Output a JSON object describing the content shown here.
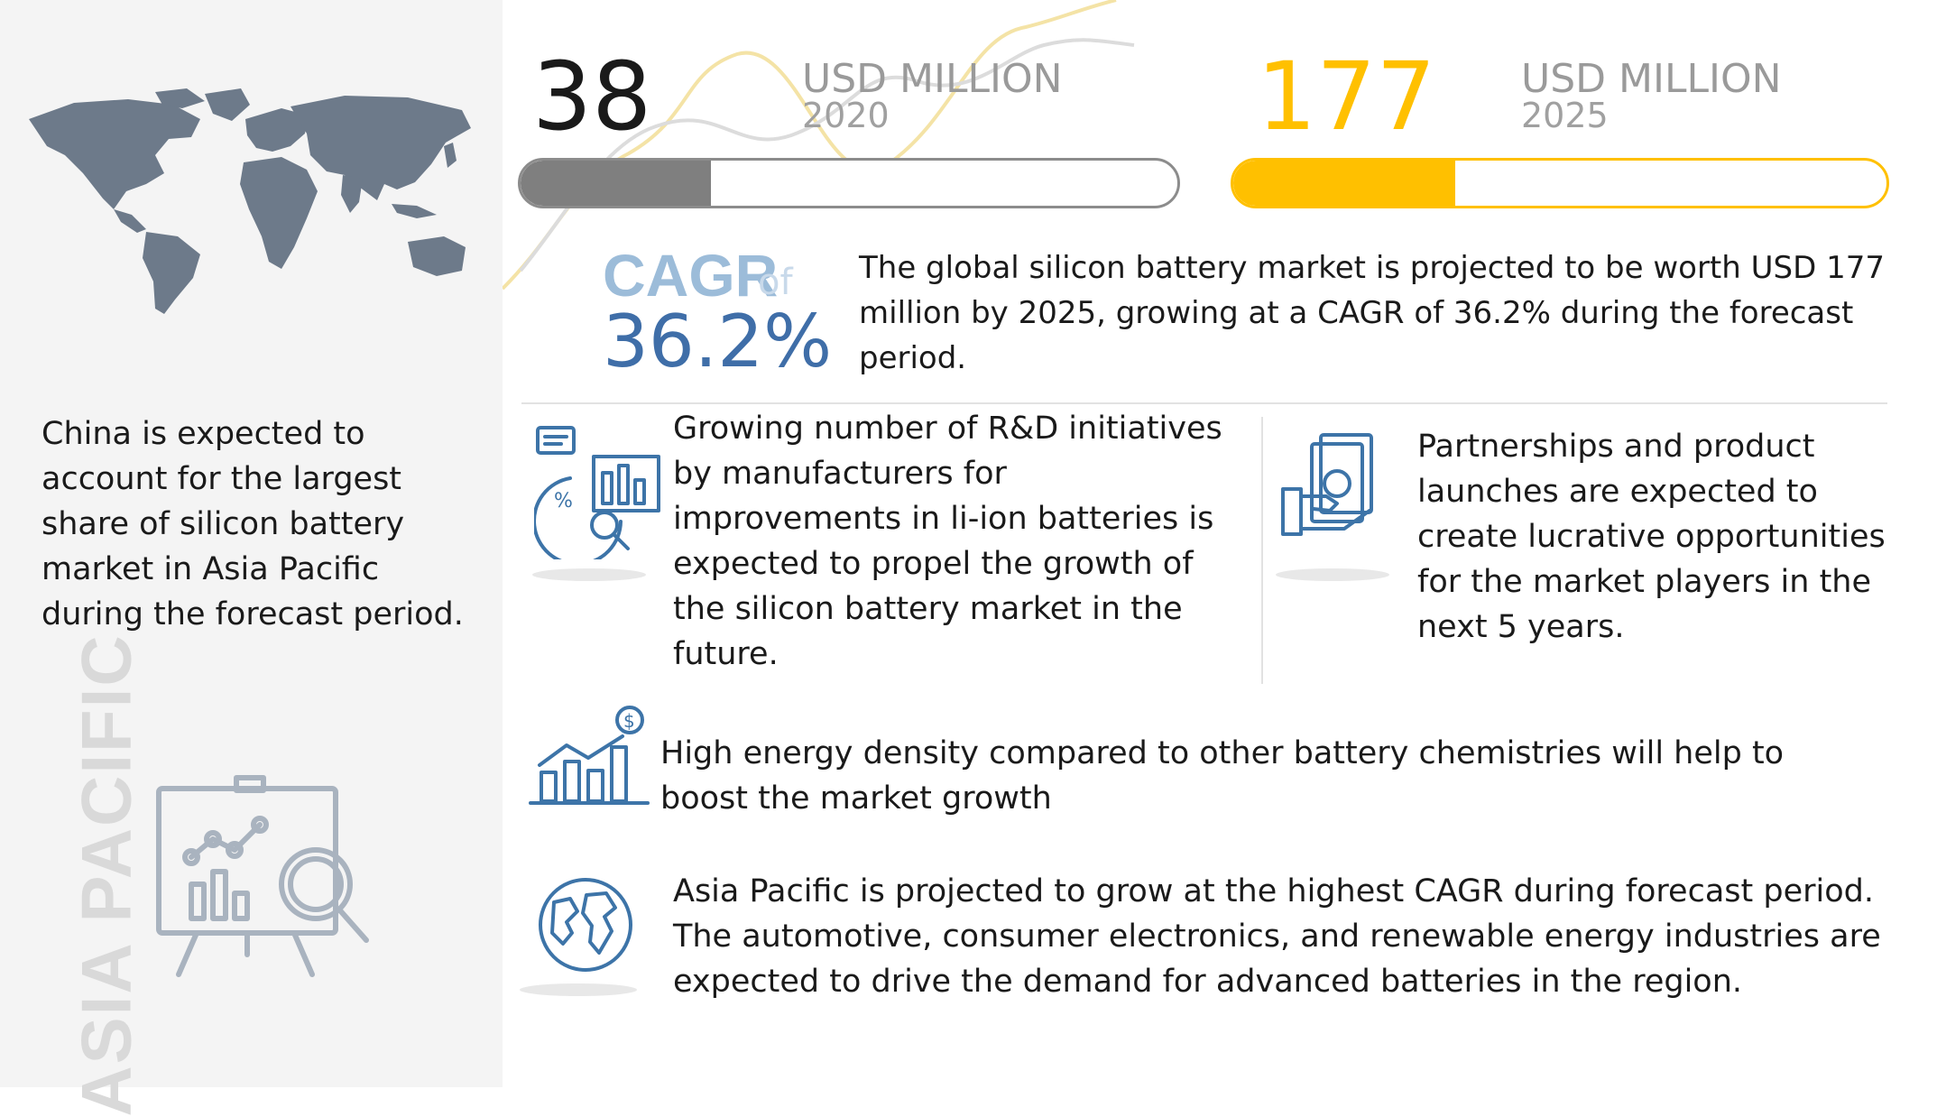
{
  "sidebar": {
    "china_text": "China is expected to account for the largest share of  silicon battery market in Asia Pacific during the forecast period.",
    "region_label": "ASIA PACIFIC"
  },
  "metrics": {
    "value_2020": {
      "number": "38",
      "unit": "USD MILLION",
      "year": "2020",
      "bar_fill_fraction": 0.29,
      "color": "#7f7f7f"
    },
    "value_2025": {
      "number": "177",
      "unit": "USD MILLION",
      "year": "2025",
      "bar_fill_fraction": 0.34,
      "color": "#ffc000"
    }
  },
  "cagr": {
    "label": "CAGR",
    "of": "of",
    "value": "36.2%",
    "summary": "The global silicon battery market is projected to be worth USD 177 million by 2025, growing at a CAGR of 36.2% during the forecast period."
  },
  "features": {
    "rnd": "Growing number of R&D initiatives by manufacturers for improvements in li-ion batteries is expected to propel the growth of the silicon battery market in the future.",
    "partnerships": "Partnerships and product launches are expected to create lucrative opportunities for the market players in the next 5 years.",
    "energy_density": "High energy density compared to other battery chemistries will help to boost the market growth",
    "asia_pacific": "Asia Pacific is projected to grow at the highest CAGR during forecast period. The automotive, consumer electronics, and renewable energy industries are expected to drive the demand for advanced batteries in the region."
  },
  "colors": {
    "icon_blue": "#3d74a8",
    "map_gray": "#6d7a8a",
    "gray_bar": "#7f7f7f",
    "yellow": "#ffc000"
  },
  "icons": [
    "world-map",
    "analytics-board-icon",
    "research-icon",
    "money-hand-icon",
    "growth-chart-icon",
    "globe-icon"
  ]
}
